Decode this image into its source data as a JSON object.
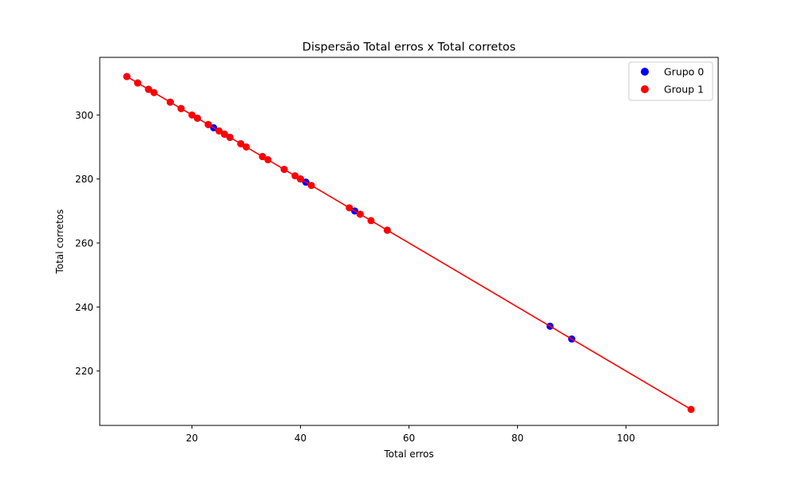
{
  "chart_data": {
    "type": "scatter",
    "title": "Dispersão Total erros x Total corretos",
    "xlabel": "Total erros",
    "ylabel": "Total corretos",
    "xlim": [
      3,
      117
    ],
    "ylim": [
      203,
      318
    ],
    "xticks": [
      20,
      40,
      60,
      80,
      100
    ],
    "yticks": [
      220,
      240,
      260,
      280,
      300
    ],
    "grid": false,
    "legend_position": "top-right",
    "line": {
      "color": "#ff0000",
      "points": [
        [
          8,
          312
        ],
        [
          112,
          208
        ]
      ]
    },
    "series": [
      {
        "name": "Grupo 0",
        "color": "#0000ff",
        "points": [
          [
            8,
            312
          ],
          [
            10,
            310
          ],
          [
            12,
            308
          ],
          [
            16,
            304
          ],
          [
            18,
            302
          ],
          [
            21,
            299
          ],
          [
            23,
            297
          ],
          [
            24,
            296
          ],
          [
            26,
            294
          ],
          [
            27,
            293
          ],
          [
            29,
            291
          ],
          [
            33,
            287
          ],
          [
            37,
            283
          ],
          [
            40,
            280
          ],
          [
            41,
            279
          ],
          [
            50,
            270
          ],
          [
            51,
            269
          ],
          [
            56,
            264
          ],
          [
            86,
            234
          ],
          [
            90,
            230
          ]
        ]
      },
      {
        "name": "Group 1",
        "color": "#ff0000",
        "points": [
          [
            8,
            312
          ],
          [
            10,
            310
          ],
          [
            12,
            308
          ],
          [
            13,
            307
          ],
          [
            16,
            304
          ],
          [
            18,
            302
          ],
          [
            20,
            300
          ],
          [
            21,
            299
          ],
          [
            23,
            297
          ],
          [
            25,
            295
          ],
          [
            26,
            294
          ],
          [
            27,
            293
          ],
          [
            29,
            291
          ],
          [
            30,
            290
          ],
          [
            33,
            287
          ],
          [
            34,
            286
          ],
          [
            37,
            283
          ],
          [
            39,
            281
          ],
          [
            40,
            280
          ],
          [
            42,
            278
          ],
          [
            49,
            271
          ],
          [
            51,
            269
          ],
          [
            53,
            267
          ],
          [
            56,
            264
          ],
          [
            112,
            208
          ]
        ]
      }
    ]
  }
}
